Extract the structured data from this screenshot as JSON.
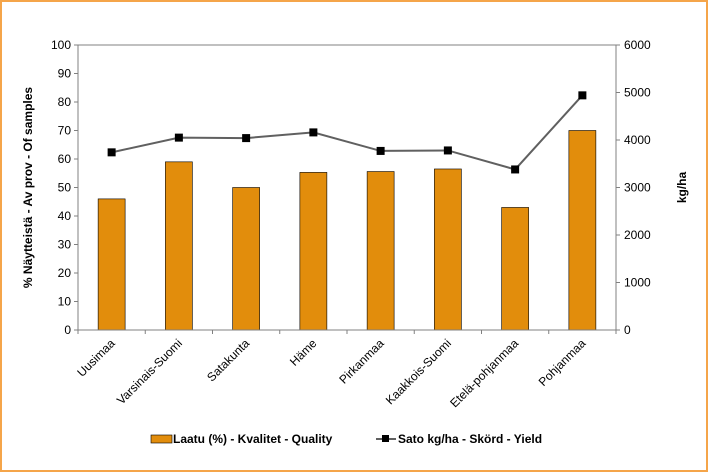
{
  "chart_data": {
    "type": "bar",
    "categories": [
      "Uusimaa",
      "Varsinais-Suomi",
      "Satakunta",
      "Häme",
      "Pirkanmaa",
      "Kaakkois-Suomi",
      "Etelä-pohjanmaa",
      "Pohjanmaa"
    ],
    "series": [
      {
        "name": "Laatu (%) - Kvalitet - Quality",
        "type": "bar",
        "axis": "left",
        "color": "#e28d0c",
        "values": [
          46,
          59,
          50,
          55.3,
          55.6,
          56.5,
          43,
          70
        ]
      },
      {
        "name": "Sato kg/ha - Skörd - Yield",
        "type": "line",
        "axis": "right",
        "color": "#606060",
        "marker_color": "#000000",
        "values": [
          3740,
          4050,
          4040,
          4160,
          3770,
          3780,
          3380,
          4940
        ]
      }
    ],
    "ylabel": "% Näytteistä - Av prov - Of samples",
    "y2label": "kg/ha",
    "ylim": [
      0,
      100
    ],
    "y2lim": [
      0,
      6000
    ],
    "yticks": [
      "0",
      "10",
      "20",
      "30",
      "40",
      "50",
      "60",
      "70",
      "80",
      "90",
      "100"
    ],
    "y2ticks": [
      "0",
      "1000",
      "2000",
      "3000",
      "4000",
      "5000",
      "6000"
    ],
    "grid": false,
    "legend": "bottom"
  }
}
